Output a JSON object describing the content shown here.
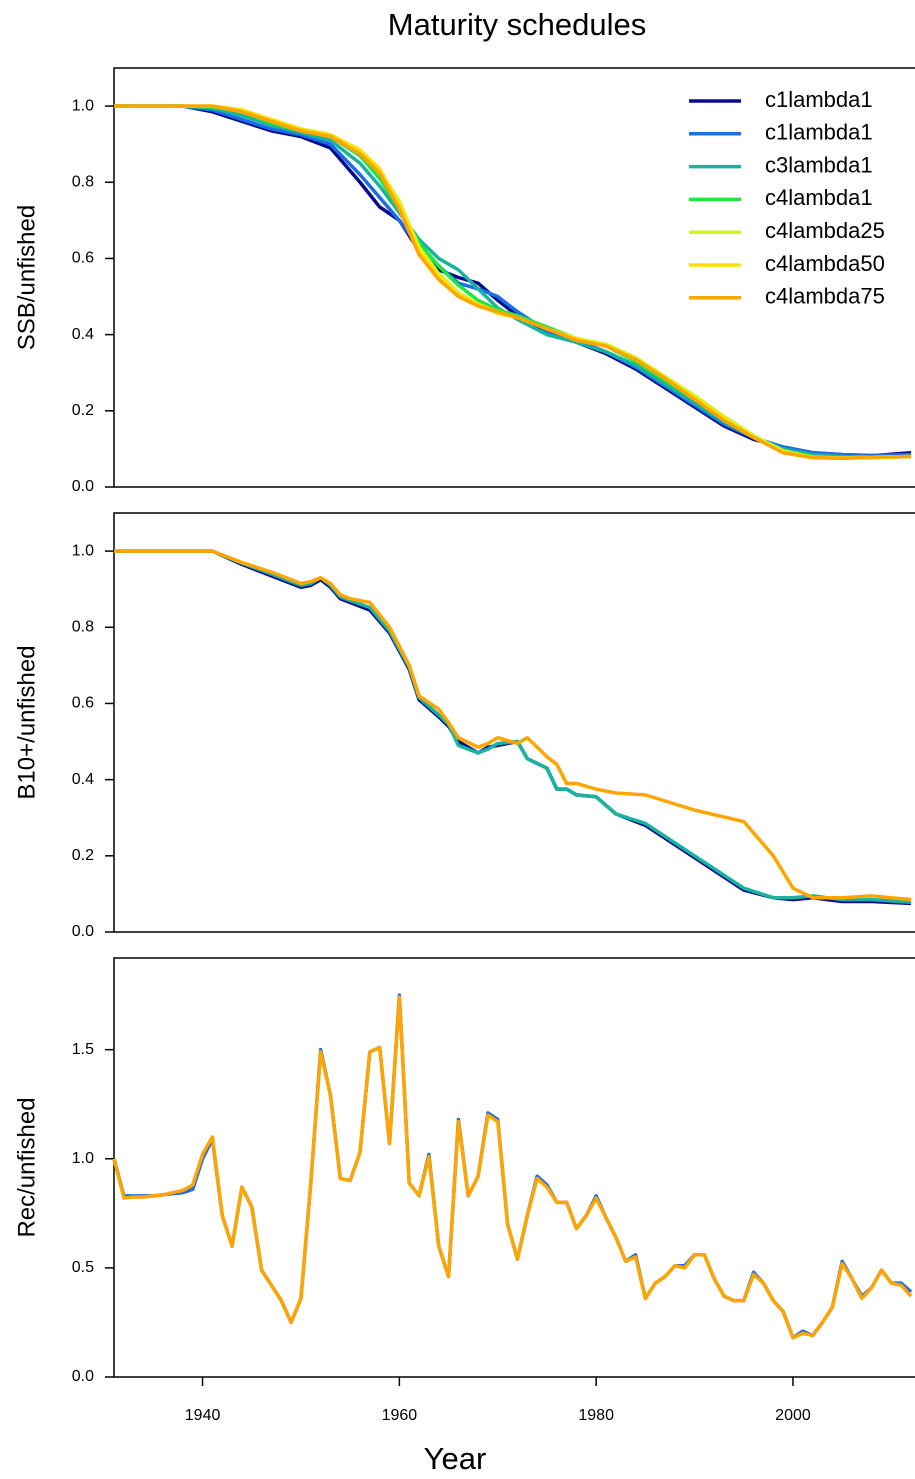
{
  "chart_data": [
    {
      "type": "line",
      "title": "Maturity schedules",
      "ylabel": "SSB/unfished",
      "x": [
        1931,
        1935,
        1938,
        1941,
        1944,
        1947,
        1950,
        1953,
        1956,
        1958,
        1960,
        1962,
        1964,
        1966,
        1968,
        1970,
        1972,
        1975,
        1978,
        1981,
        1984,
        1987,
        1990,
        1993,
        1996,
        1999,
        2002,
        2005,
        2008,
        2012
      ],
      "xlim": [
        1931,
        2012.4
      ],
      "ylim": [
        0,
        1.1
      ],
      "yticks": [
        {
          "value": 0,
          "label": "0.0"
        },
        0.2,
        0.4,
        0.6,
        0.8,
        {
          "value": 1,
          "label": "1.0"
        }
      ],
      "legend": "top-right",
      "series": [
        {
          "name": "c1lambda1",
          "color": "#0a0a8c",
          "values": [
            1,
            1,
            1,
            0.985,
            0.96,
            0.935,
            0.92,
            0.89,
            0.8,
            0.735,
            0.7,
            0.62,
            0.57,
            0.55,
            0.535,
            0.49,
            0.45,
            0.41,
            0.38,
            0.35,
            0.31,
            0.26,
            0.21,
            0.16,
            0.125,
            0.105,
            0.09,
            0.085,
            0.082,
            0.09
          ]
        },
        {
          "name": "c1lambda1",
          "color": "#1a6ee6",
          "values": [
            1,
            1,
            1,
            0.99,
            0.965,
            0.94,
            0.925,
            0.9,
            0.82,
            0.76,
            0.7,
            0.63,
            0.58,
            0.535,
            0.52,
            0.5,
            0.46,
            0.41,
            0.385,
            0.355,
            0.315,
            0.265,
            0.215,
            0.165,
            0.13,
            0.105,
            0.09,
            0.085,
            0.083,
            0.085
          ]
        },
        {
          "name": "c3lambda1",
          "color": "#18b4a0",
          "values": [
            1,
            1,
            1,
            0.995,
            0.975,
            0.95,
            0.93,
            0.91,
            0.85,
            0.79,
            0.72,
            0.65,
            0.6,
            0.57,
            0.52,
            0.47,
            0.44,
            0.4,
            0.38,
            0.355,
            0.32,
            0.27,
            0.22,
            0.17,
            0.13,
            0.1,
            0.085,
            0.08,
            0.078,
            0.08
          ]
        },
        {
          "name": "c4lambda1",
          "color": "#1ee63c",
          "values": [
            1,
            1,
            1,
            0.998,
            0.985,
            0.955,
            0.935,
            0.92,
            0.87,
            0.81,
            0.73,
            0.64,
            0.58,
            0.53,
            0.49,
            0.465,
            0.45,
            0.42,
            0.39,
            0.37,
            0.33,
            0.28,
            0.23,
            0.18,
            0.13,
            0.095,
            0.08,
            0.077,
            0.077,
            0.08
          ]
        },
        {
          "name": "c4lambda25",
          "color": "#d4f51e",
          "values": [
            1,
            1,
            1,
            1,
            0.99,
            0.96,
            0.94,
            0.925,
            0.88,
            0.83,
            0.75,
            0.63,
            0.56,
            0.51,
            0.48,
            0.455,
            0.445,
            0.415,
            0.39,
            0.375,
            0.34,
            0.29,
            0.24,
            0.185,
            0.135,
            0.095,
            0.078,
            0.076,
            0.078,
            0.08
          ]
        },
        {
          "name": "c4lambda50",
          "color": "#ffe000",
          "values": [
            1,
            1,
            1,
            1,
            0.99,
            0.965,
            0.94,
            0.925,
            0.885,
            0.835,
            0.74,
            0.62,
            0.55,
            0.505,
            0.48,
            0.46,
            0.445,
            0.415,
            0.39,
            0.37,
            0.335,
            0.285,
            0.235,
            0.18,
            0.13,
            0.09,
            0.077,
            0.076,
            0.078,
            0.08
          ]
        },
        {
          "name": "c4lambda75",
          "color": "#ffa500",
          "values": [
            1,
            1,
            1,
            1,
            0.985,
            0.96,
            0.935,
            0.92,
            0.875,
            0.825,
            0.73,
            0.61,
            0.545,
            0.5,
            0.475,
            0.46,
            0.445,
            0.415,
            0.385,
            0.37,
            0.335,
            0.285,
            0.23,
            0.175,
            0.13,
            0.09,
            0.077,
            0.075,
            0.078,
            0.08
          ]
        }
      ]
    },
    {
      "type": "line",
      "ylabel": "B10+/unfished",
      "x": [
        1931,
        1941,
        1944,
        1947,
        1949,
        1950,
        1951,
        1952,
        1953,
        1954,
        1955,
        1957,
        1959,
        1961,
        1962,
        1964,
        1965,
        1966,
        1968,
        1969,
        1970,
        1972,
        1973,
        1975,
        1976,
        1977,
        1978,
        1980,
        1982,
        1985,
        1990,
        1995,
        1998,
        2000,
        2002,
        2005,
        2008,
        2012
      ],
      "xlim": [
        1931,
        2012.4
      ],
      "ylim": [
        0,
        1.1
      ],
      "yticks": [
        {
          "value": 0,
          "label": "0.0"
        },
        0.2,
        0.4,
        0.6,
        0.8,
        {
          "value": 1,
          "label": "1.0"
        }
      ],
      "series": [
        {
          "name": "c1lambda1",
          "color": "#0a0a8c",
          "values": [
            1,
            1,
            0.965,
            0.935,
            0.915,
            0.905,
            0.91,
            0.925,
            0.905,
            0.875,
            0.865,
            0.845,
            0.785,
            0.69,
            0.61,
            0.565,
            0.54,
            0.5,
            0.47,
            0.485,
            0.49,
            0.5,
            0.455,
            0.43,
            0.375,
            0.375,
            0.36,
            0.355,
            0.31,
            0.28,
            0.195,
            0.11,
            0.09,
            0.085,
            0.09,
            0.08,
            0.08,
            0.075
          ]
        },
        {
          "name": "c3lambda1",
          "color": "#18b4a0",
          "values": [
            1,
            1,
            0.968,
            0.94,
            0.92,
            0.91,
            0.915,
            0.93,
            0.91,
            0.88,
            0.87,
            0.852,
            0.79,
            0.695,
            0.615,
            0.57,
            0.545,
            0.49,
            0.47,
            0.48,
            0.495,
            0.5,
            0.455,
            0.43,
            0.375,
            0.375,
            0.36,
            0.355,
            0.31,
            0.285,
            0.2,
            0.115,
            0.09,
            0.09,
            0.095,
            0.085,
            0.085,
            0.078
          ]
        },
        {
          "name": "c4lambda75",
          "color": "#ffa500",
          "values": [
            1,
            1,
            0.97,
            0.945,
            0.925,
            0.915,
            0.92,
            0.93,
            0.915,
            0.885,
            0.875,
            0.865,
            0.8,
            0.7,
            0.62,
            0.585,
            0.55,
            0.51,
            0.485,
            0.495,
            0.51,
            0.495,
            0.51,
            0.46,
            0.44,
            0.39,
            0.39,
            0.375,
            0.365,
            0.36,
            0.32,
            0.29,
            0.2,
            0.115,
            0.09,
            0.09,
            0.095,
            0.085
          ]
        }
      ]
    },
    {
      "type": "line",
      "ylabel": "Rec/unfished",
      "xlabel": "Year",
      "x": [
        1931,
        1932,
        1933,
        1934,
        1935,
        1936,
        1937,
        1938,
        1939,
        1940,
        1941,
        1942,
        1943,
        1944,
        1945,
        1946,
        1947,
        1948,
        1949,
        1950,
        1951,
        1952,
        1953,
        1954,
        1955,
        1956,
        1957,
        1958,
        1959,
        1960,
        1961,
        1962,
        1963,
        1964,
        1965,
        1966,
        1967,
        1968,
        1969,
        1970,
        1971,
        1972,
        1973,
        1974,
        1975,
        1976,
        1977,
        1978,
        1979,
        1980,
        1981,
        1982,
        1983,
        1984,
        1985,
        1986,
        1987,
        1988,
        1989,
        1990,
        1991,
        1992,
        1993,
        1994,
        1995,
        1996,
        1997,
        1998,
        1999,
        2000,
        2001,
        2002,
        2003,
        2004,
        2005,
        2006,
        2007,
        2008,
        2009,
        2010,
        2011,
        2012
      ],
      "xlim": [
        1931,
        2012.4
      ],
      "xticks": [
        1940,
        1960,
        1980,
        2000
      ],
      "ylim": [
        0,
        1.92
      ],
      "yticks": [
        {
          "value": 0,
          "label": "0.0"
        },
        0.5,
        {
          "value": 1,
          "label": "1.0"
        },
        1.5
      ],
      "series": [
        {
          "name": "c1lambda1",
          "color": "#1a6ee6",
          "values": [
            1,
            0.83,
            0.83,
            0.83,
            0.83,
            0.835,
            0.84,
            0.845,
            0.86,
            1.0,
            1.09,
            0.74,
            0.6,
            0.87,
            0.78,
            0.49,
            0.42,
            0.35,
            0.25,
            0.36,
            0.89,
            1.5,
            1.29,
            0.91,
            0.9,
            1.03,
            1.49,
            1.51,
            1.07,
            1.75,
            0.89,
            0.83,
            1.02,
            0.6,
            0.46,
            1.18,
            0.83,
            0.92,
            1.21,
            1.18,
            0.7,
            0.54,
            0.74,
            0.92,
            0.88,
            0.8,
            0.8,
            0.68,
            0.74,
            0.83,
            0.73,
            0.64,
            0.53,
            0.56,
            0.36,
            0.43,
            0.46,
            0.51,
            0.51,
            0.56,
            0.56,
            0.45,
            0.37,
            0.35,
            0.35,
            0.48,
            0.43,
            0.35,
            0.3,
            0.18,
            0.21,
            0.19,
            0.25,
            0.32,
            0.53,
            0.45,
            0.37,
            0.41,
            0.49,
            0.43,
            0.43,
            0.39
          ]
        },
        {
          "name": "c4lambda75",
          "color": "#ffa500",
          "values": [
            1,
            0.82,
            0.825,
            0.825,
            0.83,
            0.835,
            0.845,
            0.855,
            0.88,
            1.02,
            1.1,
            0.74,
            0.6,
            0.87,
            0.78,
            0.49,
            0.42,
            0.35,
            0.25,
            0.36,
            0.89,
            1.49,
            1.29,
            0.91,
            0.9,
            1.03,
            1.49,
            1.51,
            1.07,
            1.74,
            0.89,
            0.83,
            1.01,
            0.6,
            0.46,
            1.17,
            0.83,
            0.92,
            1.2,
            1.17,
            0.7,
            0.54,
            0.74,
            0.91,
            0.87,
            0.8,
            0.8,
            0.68,
            0.74,
            0.82,
            0.73,
            0.64,
            0.53,
            0.55,
            0.36,
            0.43,
            0.46,
            0.51,
            0.5,
            0.56,
            0.56,
            0.45,
            0.37,
            0.35,
            0.35,
            0.47,
            0.43,
            0.35,
            0.3,
            0.18,
            0.2,
            0.19,
            0.25,
            0.32,
            0.52,
            0.45,
            0.36,
            0.41,
            0.49,
            0.43,
            0.42,
            0.37
          ]
        }
      ]
    }
  ]
}
